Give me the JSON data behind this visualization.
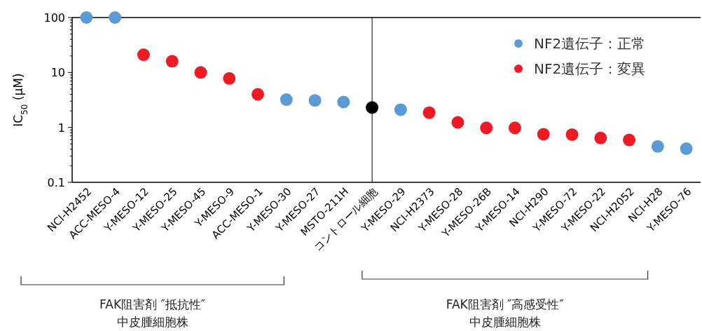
{
  "chart_data": {
    "type": "scatter",
    "marker": "circle",
    "log": "y",
    "ylim": [
      0.1,
      100
    ],
    "yticks": [
      0.1,
      1,
      10,
      100
    ],
    "ylabel": "IC$_{50}$ (μM)",
    "legend": "top right",
    "categories": [
      "NCI-H2452",
      "ACC-MESO-4",
      "Y-MESO-12",
      "Y-MESO-25",
      "Y-MESO-45",
      "Y-MESO-9",
      "ACC-MESO-1",
      "Y-MESO-30",
      "Y-MESO-27",
      "MSTO-211H",
      "コントロール細胞",
      "Y-MESO-29",
      "NCI-H2373",
      "Y-MESO-28",
      "Y-MESO-26B",
      "Y-MESO-14",
      "NCI-H290",
      "Y-MESO-72",
      "Y-MESO-22",
      "NCI-H2052",
      "NCI-H28",
      "Y-MESO-76"
    ],
    "series": [
      {
        "name": "NF2遺伝子：正常",
        "color": "#5b9bd5",
        "values": [
          100,
          100,
          null,
          null,
          null,
          null,
          null,
          3.2,
          3.1,
          2.9,
          null,
          2.1,
          null,
          null,
          null,
          null,
          null,
          null,
          null,
          null,
          0.45,
          0.41
        ]
      },
      {
        "name": "NF2遺伝子：変異",
        "color": "#ed1c24",
        "values": [
          null,
          null,
          21,
          16,
          10,
          7.8,
          4,
          null,
          null,
          null,
          null,
          null,
          1.85,
          1.23,
          0.98,
          0.98,
          0.75,
          0.74,
          0.64,
          0.59,
          null,
          null
        ]
      },
      {
        "color": "#000000",
        "values": [
          null,
          null,
          null,
          null,
          null,
          null,
          null,
          null,
          null,
          null,
          2.3,
          null,
          null,
          null,
          null,
          null,
          null,
          null,
          null,
          null,
          null,
          null
        ]
      }
    ],
    "ref_lines": [
      {
        "axis": "x",
        "value": "コントロール細胞",
        "color": "#000000"
      }
    ],
    "annotations": [
      "FAK阻害剤 ″抵抗性″\n中皮腫細胞株",
      "FAK阻害剤 ″高感受性″\n中皮腫細胞株"
    ]
  }
}
